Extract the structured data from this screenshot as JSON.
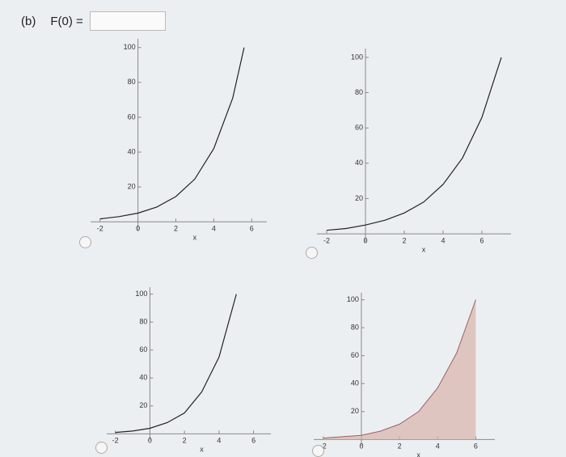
{
  "question": {
    "label": "(b)",
    "text": "F(0) ="
  },
  "chart_data": [
    {
      "type": "line",
      "xlabel": "x",
      "xlim": [
        -2.5,
        6.8
      ],
      "ylim": [
        -5,
        105
      ],
      "xticks": [
        -2,
        0,
        2,
        4,
        6
      ],
      "yticks": [
        20,
        40,
        60,
        80,
        100
      ],
      "x": [
        -2,
        -1,
        0,
        1,
        2,
        3,
        4,
        5,
        5.6
      ],
      "series": [
        {
          "color": "#222222",
          "values": [
            1.7,
            3,
            5,
            8.5,
            14.5,
            24.5,
            42,
            71,
            100
          ]
        }
      ]
    },
    {
      "type": "line",
      "xlabel": "x",
      "xlim": [
        -2.5,
        7.5
      ],
      "ylim": [
        -5,
        105
      ],
      "xticks": [
        -2,
        0,
        2,
        4,
        6
      ],
      "yticks": [
        20,
        40,
        60,
        80,
        100
      ],
      "x": [
        -2,
        -1,
        0,
        1,
        2,
        3,
        4,
        5,
        6,
        7
      ],
      "series": [
        {
          "color": "#222222",
          "values": [
            2,
            3,
            5,
            7.7,
            11.8,
            18,
            28,
            43,
            66,
            100
          ]
        }
      ]
    },
    {
      "type": "line",
      "xlabel": "x",
      "xlim": [
        -2.5,
        7
      ],
      "ylim": [
        -5,
        105
      ],
      "xticks": [
        -2,
        0,
        2,
        4,
        6
      ],
      "yticks": [
        20,
        40,
        60,
        80,
        100
      ],
      "x": [
        -2,
        -1,
        0,
        1,
        2,
        3,
        4,
        5
      ],
      "series": [
        {
          "color": "#222222",
          "values": [
            1,
            2,
            4,
            8,
            15,
            30,
            55,
            100
          ]
        }
      ]
    },
    {
      "type": "area",
      "xlabel": "x",
      "xlim": [
        -2.5,
        7
      ],
      "ylim": [
        -5,
        105
      ],
      "xticks": [
        -2,
        0,
        2,
        4,
        6
      ],
      "yticks": [
        20,
        40,
        60,
        80,
        100
      ],
      "x": [
        -2,
        -1,
        0,
        1,
        2,
        3,
        4,
        5,
        6
      ],
      "series": [
        {
          "color": "#d9b3ab",
          "values": [
            1,
            2,
            3,
            6,
            11,
            20,
            37,
            62,
            100
          ]
        }
      ]
    }
  ]
}
